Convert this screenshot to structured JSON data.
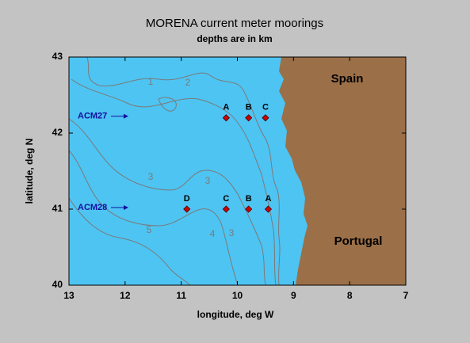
{
  "chart_data": {
    "type": "scatter",
    "title": "MORENA current meter moorings",
    "subtitle": "depths are in km",
    "xlabel": "longitude, deg W",
    "ylabel": "latitude, deg N",
    "xlim": [
      13,
      7
    ],
    "ylim": [
      40,
      43
    ],
    "xticks": [
      13,
      12,
      11,
      10,
      9,
      8,
      7
    ],
    "yticks": [
      40,
      41,
      42,
      43
    ],
    "series": [
      {
        "name": "ACM27",
        "color": "#d00000",
        "x": [
          10.2,
          9.8,
          9.5
        ],
        "values": [
          42.2,
          42.2,
          42.2
        ],
        "point_labels": [
          "A",
          "B",
          "C"
        ]
      },
      {
        "name": "ACM28",
        "color": "#d00000",
        "x": [
          10.9,
          10.2,
          9.8,
          9.45
        ],
        "values": [
          41,
          41,
          41,
          41
        ],
        "point_labels": [
          "D",
          "C",
          "B",
          "A"
        ]
      }
    ],
    "region_labels": [
      "Spain",
      "Portugal"
    ],
    "contour_labels": [
      "1",
      "2",
      "3",
      "3",
      "5",
      "4",
      "3"
    ]
  }
}
